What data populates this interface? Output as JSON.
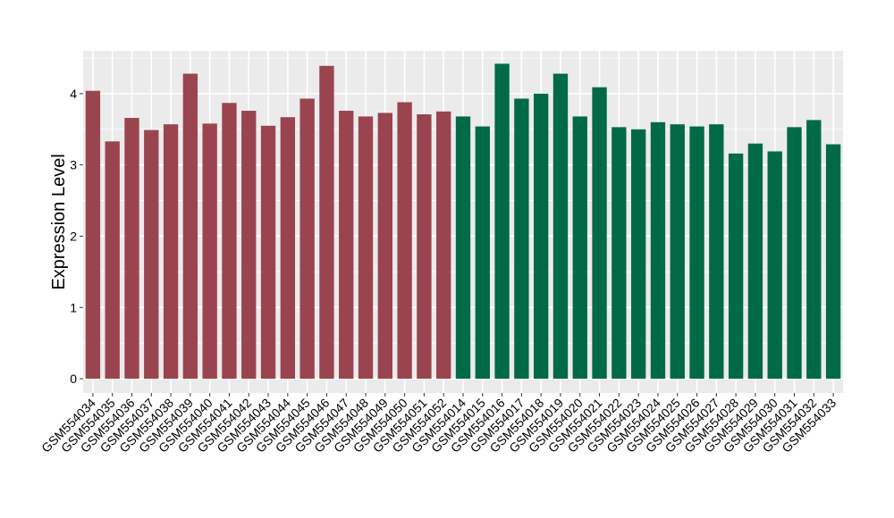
{
  "chart_data": {
    "type": "bar",
    "title": "",
    "xlabel": "",
    "ylabel": "Expression Level",
    "ylim": [
      -0.2,
      4.6
    ],
    "yticks": [
      0,
      1,
      2,
      3,
      4
    ],
    "grid": true,
    "legend": "none",
    "categories": [
      "GSM554034",
      "GSM554035",
      "GSM554036",
      "GSM554037",
      "GSM554038",
      "GSM554039",
      "GSM554040",
      "GSM554041",
      "GSM554042",
      "GSM554043",
      "GSM554044",
      "GSM554045",
      "GSM554046",
      "GSM554047",
      "GSM554048",
      "GSM554049",
      "GSM554050",
      "GSM554051",
      "GSM554052",
      "GSM554014",
      "GSM554015",
      "GSM554016",
      "GSM554017",
      "GSM554018",
      "GSM554019",
      "GSM554020",
      "GSM554021",
      "GSM554022",
      "GSM554023",
      "GSM554024",
      "GSM554025",
      "GSM554026",
      "GSM554027",
      "GSM554028",
      "GSM554029",
      "GSM554030",
      "GSM554031",
      "GSM554032",
      "GSM554033"
    ],
    "values": [
      4.04,
      3.33,
      3.66,
      3.49,
      3.57,
      4.28,
      3.58,
      3.87,
      3.76,
      3.55,
      3.67,
      3.93,
      4.39,
      3.76,
      3.68,
      3.73,
      3.88,
      3.71,
      3.75,
      3.68,
      3.54,
      4.42,
      3.93,
      4.0,
      4.28,
      3.68,
      4.09,
      3.53,
      3.5,
      3.6,
      3.57,
      3.54,
      3.57,
      3.16,
      3.3,
      3.19,
      3.53,
      3.63,
      3.29
    ],
    "bar_colors": [
      "#9a4450",
      "#9a4450",
      "#9a4450",
      "#9a4450",
      "#9a4450",
      "#9a4450",
      "#9a4450",
      "#9a4450",
      "#9a4450",
      "#9a4450",
      "#9a4450",
      "#9a4450",
      "#9a4450",
      "#9a4450",
      "#9a4450",
      "#9a4450",
      "#9a4450",
      "#9a4450",
      "#9a4450",
      "#006a46",
      "#006a46",
      "#006a46",
      "#006a46",
      "#006a46",
      "#006a46",
      "#006a46",
      "#006a46",
      "#006a46",
      "#006a46",
      "#006a46",
      "#006a46",
      "#006a46",
      "#006a46",
      "#006a46",
      "#006a46",
      "#006a46",
      "#006a46",
      "#006a46",
      "#006a46"
    ],
    "panel_background": "#ebebeb",
    "gridline_color": "#ffffff"
  }
}
